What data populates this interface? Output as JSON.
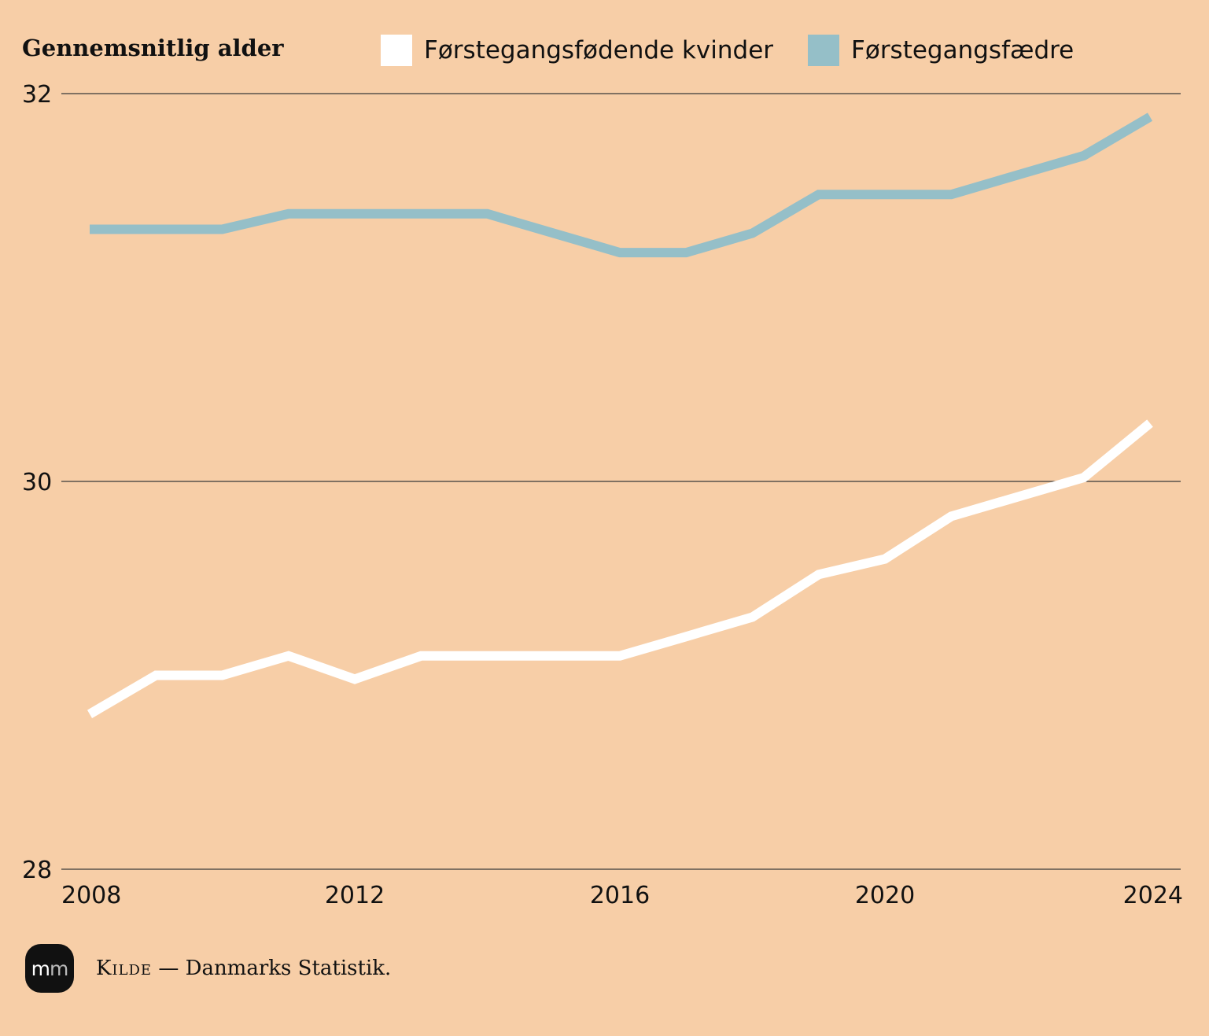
{
  "chart_data": {
    "type": "line",
    "ylabel": "Gennemsnitlig alder",
    "ylim": [
      28,
      32
    ],
    "yticks": [
      28,
      30,
      32
    ],
    "xticks": [
      2008,
      2012,
      2016,
      2020,
      2024
    ],
    "x": [
      2008,
      2009,
      2010,
      2011,
      2012,
      2013,
      2014,
      2015,
      2016,
      2017,
      2018,
      2019,
      2020,
      2021,
      2022,
      2023,
      2024
    ],
    "series": [
      {
        "name": "Førstegangsfødende kvinder",
        "color": "#ffffff",
        "values": [
          28.8,
          29.0,
          29.0,
          29.1,
          28.98,
          29.1,
          29.1,
          29.1,
          29.1,
          29.2,
          29.3,
          29.52,
          29.6,
          29.82,
          29.92,
          30.02,
          30.3
        ]
      },
      {
        "name": "Førstegangsfædre",
        "color": "#95bfc8",
        "values": [
          31.3,
          31.3,
          31.3,
          31.38,
          31.38,
          31.38,
          31.38,
          31.28,
          31.18,
          31.18,
          31.28,
          31.48,
          31.48,
          31.48,
          31.58,
          31.68,
          31.88
        ]
      }
    ],
    "legend_position": "top",
    "grid": true
  },
  "footer": {
    "logo_text_a": "m",
    "logo_text_b": "m",
    "source_label": "Kilde",
    "source_sep": " — ",
    "source_text": "Danmarks Statistik."
  },
  "colors": {
    "background": "#f7cea7",
    "gridline": "#3a3a3a",
    "logo_bg": "#111111"
  }
}
